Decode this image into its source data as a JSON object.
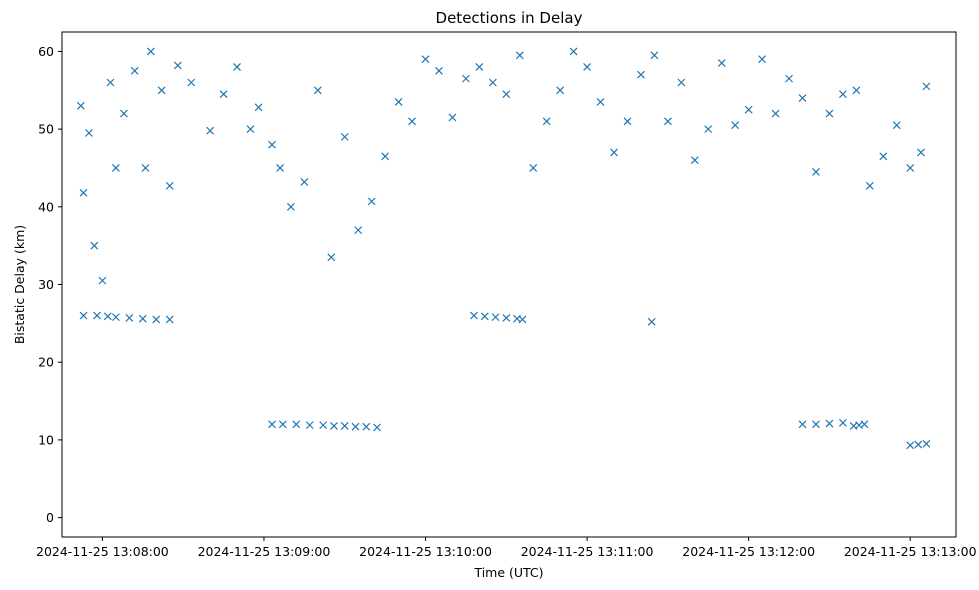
{
  "chart_data": {
    "type": "scatter",
    "title": "Detections in Delay",
    "xlabel": "Time (UTC)",
    "ylabel": "Bistatic Delay (km)",
    "xlim": [
      "2024-11-25 13:07:45",
      "2024-11-25 13:13:17"
    ],
    "ylim": [
      -2.5,
      62.5
    ],
    "x_ticks": [
      "2024-11-25 13:08:00",
      "2024-11-25 13:09:00",
      "2024-11-25 13:10:00",
      "2024-11-25 13:11:00",
      "2024-11-25 13:12:00",
      "2024-11-25 13:13:00"
    ],
    "y_ticks": [
      0,
      10,
      20,
      30,
      40,
      50,
      60
    ],
    "grid": false,
    "marker": "x",
    "color": "#1f77b4",
    "series": [
      {
        "x": [
          "2024-11-25 13:07:52",
          "2024-11-25 13:07:53",
          "2024-11-25 13:07:55",
          "2024-11-25 13:07:57",
          "2024-11-25 13:08:00",
          "2024-11-25 13:08:03",
          "2024-11-25 13:08:05",
          "2024-11-25 13:08:08",
          "2024-11-25 13:08:12",
          "2024-11-25 13:08:16",
          "2024-11-25 13:08:18",
          "2024-11-25 13:08:22",
          "2024-11-25 13:08:25",
          "2024-11-25 13:08:28",
          "2024-11-25 13:08:33",
          "2024-11-25 13:08:40",
          "2024-11-25 13:08:45",
          "2024-11-25 13:08:50",
          "2024-11-25 13:08:55",
          "2024-11-25 13:08:58",
          "2024-11-25 13:09:03",
          "2024-11-25 13:09:06",
          "2024-11-25 13:09:10",
          "2024-11-25 13:09:15",
          "2024-11-25 13:09:20",
          "2024-11-25 13:09:25",
          "2024-11-25 13:09:30",
          "2024-11-25 13:09:35",
          "2024-11-25 13:09:40",
          "2024-11-25 13:09:45",
          "2024-11-25 13:09:50",
          "2024-11-25 13:09:55",
          "2024-11-25 13:10:00",
          "2024-11-25 13:10:05",
          "2024-11-25 13:10:10",
          "2024-11-25 13:10:15",
          "2024-11-25 13:10:20",
          "2024-11-25 13:10:25",
          "2024-11-25 13:10:30",
          "2024-11-25 13:10:35",
          "2024-11-25 13:10:40",
          "2024-11-25 13:10:45",
          "2024-11-25 13:10:50",
          "2024-11-25 13:10:55",
          "2024-11-25 13:11:00",
          "2024-11-25 13:11:05",
          "2024-11-25 13:11:10",
          "2024-11-25 13:11:15",
          "2024-11-25 13:11:20",
          "2024-11-25 13:11:25",
          "2024-11-25 13:11:30",
          "2024-11-25 13:11:35",
          "2024-11-25 13:11:40",
          "2024-11-25 13:11:45",
          "2024-11-25 13:11:50",
          "2024-11-25 13:11:55",
          "2024-11-25 13:12:00",
          "2024-11-25 13:12:05",
          "2024-11-25 13:12:10",
          "2024-11-25 13:12:15",
          "2024-11-25 13:12:20",
          "2024-11-25 13:12:25",
          "2024-11-25 13:12:30",
          "2024-11-25 13:12:35",
          "2024-11-25 13:12:40",
          "2024-11-25 13:12:45",
          "2024-11-25 13:12:50",
          "2024-11-25 13:12:55",
          "2024-11-25 13:13:00",
          "2024-11-25 13:13:04",
          "2024-11-25 13:13:06",
          "2024-11-25 13:07:53",
          "2024-11-25 13:07:58",
          "2024-11-25 13:08:02",
          "2024-11-25 13:08:05",
          "2024-11-25 13:08:10",
          "2024-11-25 13:08:15",
          "2024-11-25 13:08:20",
          "2024-11-25 13:08:25",
          "2024-11-25 13:09:03",
          "2024-11-25 13:09:07",
          "2024-11-25 13:09:12",
          "2024-11-25 13:09:17",
          "2024-11-25 13:09:22",
          "2024-11-25 13:09:26",
          "2024-11-25 13:09:30",
          "2024-11-25 13:09:34",
          "2024-11-25 13:09:38",
          "2024-11-25 13:09:42",
          "2024-11-25 13:10:18",
          "2024-11-25 13:10:22",
          "2024-11-25 13:10:26",
          "2024-11-25 13:10:30",
          "2024-11-25 13:10:34",
          "2024-11-25 13:10:36",
          "2024-11-25 13:12:20",
          "2024-11-25 13:12:25",
          "2024-11-25 13:12:30",
          "2024-11-25 13:12:35",
          "2024-11-25 13:13:00",
          "2024-11-25 13:13:03",
          "2024-11-25 13:13:06",
          "2024-11-25 13:11:24",
          "2024-11-25 13:12:39",
          "2024-11-25 13:12:41",
          "2024-11-25 13:12:43"
        ],
        "y": [
          53,
          41.8,
          49.5,
          35,
          30.5,
          56,
          45,
          52,
          57.5,
          45,
          60,
          55,
          42.7,
          58.2,
          56,
          49.8,
          54.5,
          58,
          50,
          52.8,
          48,
          45,
          40,
          43.2,
          55,
          33.5,
          49,
          37,
          40.7,
          46.5,
          53.5,
          51,
          59,
          57.5,
          51.5,
          56.5,
          58,
          56,
          54.5,
          59.5,
          45,
          51,
          55,
          60,
          58,
          53.5,
          47,
          51,
          57,
          59.5,
          51,
          56,
          46,
          50,
          58.5,
          50.5,
          52.5,
          59,
          52,
          56.5,
          54,
          44.5,
          52,
          54.5,
          55,
          42.7,
          46.5,
          50.5,
          45,
          47,
          55.5,
          26,
          26,
          25.9,
          25.8,
          25.7,
          25.6,
          25.5,
          25.5,
          12,
          12,
          12,
          11.9,
          11.9,
          11.8,
          11.8,
          11.7,
          11.7,
          11.6,
          26,
          25.9,
          25.8,
          25.7,
          25.6,
          25.5,
          12,
          12,
          12.1,
          12.2,
          9.3,
          9.4,
          9.5,
          25.2,
          11.8,
          11.9,
          12
        ]
      }
    ]
  }
}
